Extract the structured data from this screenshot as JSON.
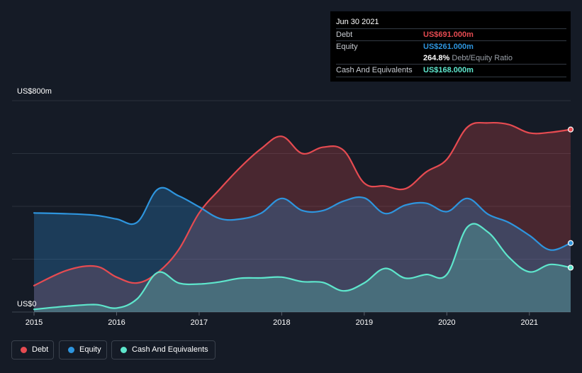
{
  "chart_data": {
    "type": "area",
    "y_top_label": "US$800m",
    "y_bottom_label": "US$0",
    "ylim": [
      0,
      800
    ],
    "xlim": [
      2015,
      2021.5
    ],
    "x_ticks": [
      "2015",
      "2016",
      "2017",
      "2018",
      "2019",
      "2020",
      "2021"
    ],
    "grid": true,
    "series": [
      {
        "name": "Debt",
        "color": "#e64b51",
        "x": [
          2015.0,
          2015.4,
          2015.75,
          2016.0,
          2016.25,
          2016.5,
          2016.75,
          2017.0,
          2017.25,
          2017.5,
          2017.75,
          2018.0,
          2018.25,
          2018.5,
          2018.75,
          2019.0,
          2019.25,
          2019.5,
          2019.75,
          2020.0,
          2020.25,
          2020.5,
          2020.75,
          2021.0,
          2021.25,
          2021.5
        ],
        "values": [
          100,
          158,
          173,
          132,
          110,
          150,
          235,
          375,
          465,
          548,
          618,
          665,
          600,
          624,
          612,
          488,
          477,
          467,
          530,
          578,
          700,
          716,
          710,
          678,
          680,
          691
        ]
      },
      {
        "name": "Equity",
        "color": "#2e95de",
        "x": [
          2015.0,
          2015.4,
          2015.75,
          2016.0,
          2016.25,
          2016.5,
          2016.75,
          2017.0,
          2017.25,
          2017.5,
          2017.75,
          2018.0,
          2018.25,
          2018.5,
          2018.75,
          2019.0,
          2019.25,
          2019.5,
          2019.75,
          2020.0,
          2020.25,
          2020.5,
          2020.75,
          2021.0,
          2021.25,
          2021.5
        ],
        "values": [
          375,
          372,
          366,
          352,
          340,
          465,
          440,
          398,
          354,
          352,
          374,
          430,
          384,
          384,
          420,
          432,
          373,
          405,
          412,
          380,
          430,
          370,
          339,
          290,
          235,
          261
        ]
      },
      {
        "name": "Cash And Equivalents",
        "color": "#5ee6cc",
        "x": [
          2015.0,
          2015.4,
          2015.75,
          2016.0,
          2016.25,
          2016.5,
          2016.75,
          2017.0,
          2017.25,
          2017.5,
          2017.75,
          2018.0,
          2018.25,
          2018.5,
          2018.75,
          2019.0,
          2019.25,
          2019.5,
          2019.75,
          2020.0,
          2020.25,
          2020.5,
          2020.75,
          2021.0,
          2021.25,
          2021.5
        ],
        "values": [
          10,
          22,
          28,
          15,
          50,
          150,
          110,
          106,
          114,
          128,
          129,
          132,
          115,
          112,
          80,
          110,
          165,
          128,
          142,
          142,
          322,
          302,
          208,
          152,
          180,
          168
        ]
      }
    ]
  },
  "tooltip": {
    "date": "Jun 30 2021",
    "rows": [
      {
        "label": "Debt",
        "value": "US$691.000m",
        "color": "#e64b51"
      },
      {
        "label": "Equity",
        "value": "US$261.000m",
        "color": "#2e95de"
      },
      {
        "label": "",
        "value": "264.8%",
        "suffix": "Debt/Equity Ratio",
        "color": "#ffffff"
      },
      {
        "label": "Cash And Equivalents",
        "value": "US$168.000m",
        "color": "#5ee6cc"
      }
    ]
  },
  "legend": [
    {
      "label": "Debt",
      "color": "#e64b51"
    },
    {
      "label": "Equity",
      "color": "#2e95de"
    },
    {
      "label": "Cash And Equivalents",
      "color": "#5ee6cc"
    }
  ]
}
